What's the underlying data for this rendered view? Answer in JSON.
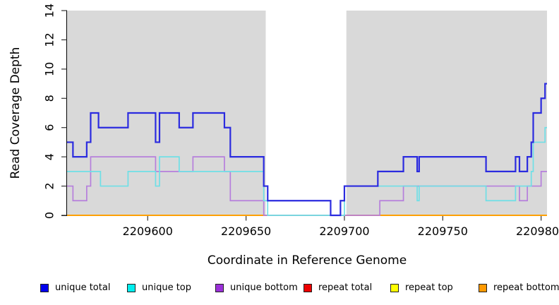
{
  "figure": {
    "background": "#ffffff",
    "plot_band_color": "#d9d9d9",
    "axis_color": "#000000",
    "tick_color": "#333333",
    "text_color": "#000000"
  },
  "chart_data": {
    "type": "line",
    "subtype": "step",
    "title": "",
    "xlabel": "Coordinate in Reference Genome",
    "ylabel": "Read Coverage Depth",
    "xlim": [
      2209559,
      2209803
    ],
    "ylim": [
      0,
      14
    ],
    "grid": false,
    "legend_position": "bottom",
    "xticks": [
      2209600,
      2209650,
      2209700,
      2209750,
      2209800
    ],
    "xtick_labels": [
      "2209600",
      "2209650",
      "2209700",
      "2209750",
      "2209800"
    ],
    "yticks": [
      0,
      2,
      4,
      6,
      8,
      10,
      12,
      14
    ],
    "ytick_labels": [
      "0",
      "2",
      "4",
      "6",
      "8",
      "10",
      "12",
      "14"
    ],
    "shaded_regions": [
      {
        "x0": 2209559,
        "x1": 2209660,
        "color": "#d9d9d9"
      },
      {
        "x0": 2209701,
        "x1": 2209803,
        "color": "#d9d9d9"
      }
    ],
    "series": [
      {
        "name": "unique total",
        "line_color": "#2b2bdf",
        "swatch_color": "#0000ee",
        "line_width": 2.2,
        "steps": [
          [
            2209559,
            5
          ],
          [
            2209562,
            4
          ],
          [
            2209569,
            5
          ],
          [
            2209571,
            7
          ],
          [
            2209575,
            6
          ],
          [
            2209590,
            7
          ],
          [
            2209604,
            5
          ],
          [
            2209606,
            7
          ],
          [
            2209616,
            6
          ],
          [
            2209623,
            7
          ],
          [
            2209639,
            6
          ],
          [
            2209642,
            4
          ],
          [
            2209659,
            2
          ],
          [
            2209661,
            1
          ],
          [
            2209693,
            0
          ],
          [
            2209698,
            1
          ],
          [
            2209700,
            2
          ],
          [
            2209717,
            3
          ],
          [
            2209730,
            4
          ],
          [
            2209737,
            3
          ],
          [
            2209738,
            4
          ],
          [
            2209772,
            3
          ],
          [
            2209787,
            4
          ],
          [
            2209789,
            3
          ],
          [
            2209793,
            4
          ],
          [
            2209795,
            5
          ],
          [
            2209796,
            7
          ],
          [
            2209800,
            8
          ],
          [
            2209802,
            9
          ]
        ]
      },
      {
        "name": "unique top",
        "line_color": "#6fdfe6",
        "swatch_color": "#00eeee",
        "line_width": 1.7,
        "steps": [
          [
            2209559,
            3
          ],
          [
            2209576,
            2
          ],
          [
            2209590,
            3
          ],
          [
            2209604,
            2
          ],
          [
            2209606,
            4
          ],
          [
            2209616,
            3
          ],
          [
            2209659,
            1
          ],
          [
            2209661,
            0
          ],
          [
            2209700,
            2
          ],
          [
            2209737,
            1
          ],
          [
            2209738,
            2
          ],
          [
            2209772,
            1
          ],
          [
            2209787,
            2
          ],
          [
            2209795,
            3
          ],
          [
            2209796,
            5
          ],
          [
            2209802,
            6
          ]
        ]
      },
      {
        "name": "unique bottom",
        "line_color": "#b67fdc",
        "swatch_color": "#9b30d9",
        "line_width": 1.7,
        "steps": [
          [
            2209559,
            2
          ],
          [
            2209562,
            1
          ],
          [
            2209569,
            2
          ],
          [
            2209571,
            4
          ],
          [
            2209604,
            3
          ],
          [
            2209623,
            4
          ],
          [
            2209639,
            3
          ],
          [
            2209642,
            1
          ],
          [
            2209659,
            0
          ],
          [
            2209718,
            1
          ],
          [
            2209730,
            2
          ],
          [
            2209789,
            1
          ],
          [
            2209793,
            2
          ],
          [
            2209800,
            3
          ]
        ]
      },
      {
        "name": "repeat total",
        "line_color": "#dd0000",
        "swatch_color": "#ee0000",
        "line_width": 1.4,
        "steps": [
          [
            2209559,
            0
          ]
        ]
      },
      {
        "name": "repeat top",
        "line_color": "#f0f000",
        "swatch_color": "#ffff00",
        "line_width": 1.5,
        "steps": [
          [
            2209559,
            0
          ]
        ]
      },
      {
        "name": "repeat bottom",
        "line_color": "#ffa000",
        "swatch_color": "#ff9900",
        "line_width": 2,
        "steps": [
          [
            2209559,
            0
          ]
        ]
      }
    ]
  }
}
